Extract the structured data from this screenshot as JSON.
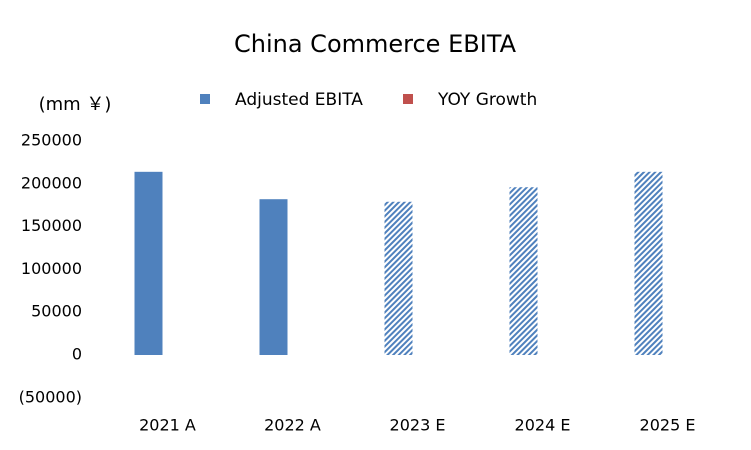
{
  "chart_data": {
    "type": "bar",
    "title": "China Commerce EBITA",
    "y_axis_label": "(mm ￥)",
    "categories": [
      "2021 A",
      "2022 A",
      "2023 E",
      "2024 E",
      "2025 E"
    ],
    "series": [
      {
        "name": "Adjusted EBITA",
        "color": "#4f81bd",
        "values": [
          214000,
          182000,
          179000,
          196000,
          214000
        ],
        "patterns": [
          "solid",
          "solid",
          "hatch",
          "hatch",
          "hatch"
        ]
      },
      {
        "name": "YOY Growth",
        "color": "#c0504d",
        "values": [
          null,
          null,
          null,
          null,
          null
        ]
      }
    ],
    "ylim": [
      -50000,
      250000
    ],
    "yticks": [
      {
        "value": -50000,
        "label": "(50000)"
      },
      0,
      50000,
      100000,
      150000,
      200000,
      250000
    ],
    "negative_tick_color": "#ff0000",
    "legend": "top",
    "grid": false
  }
}
